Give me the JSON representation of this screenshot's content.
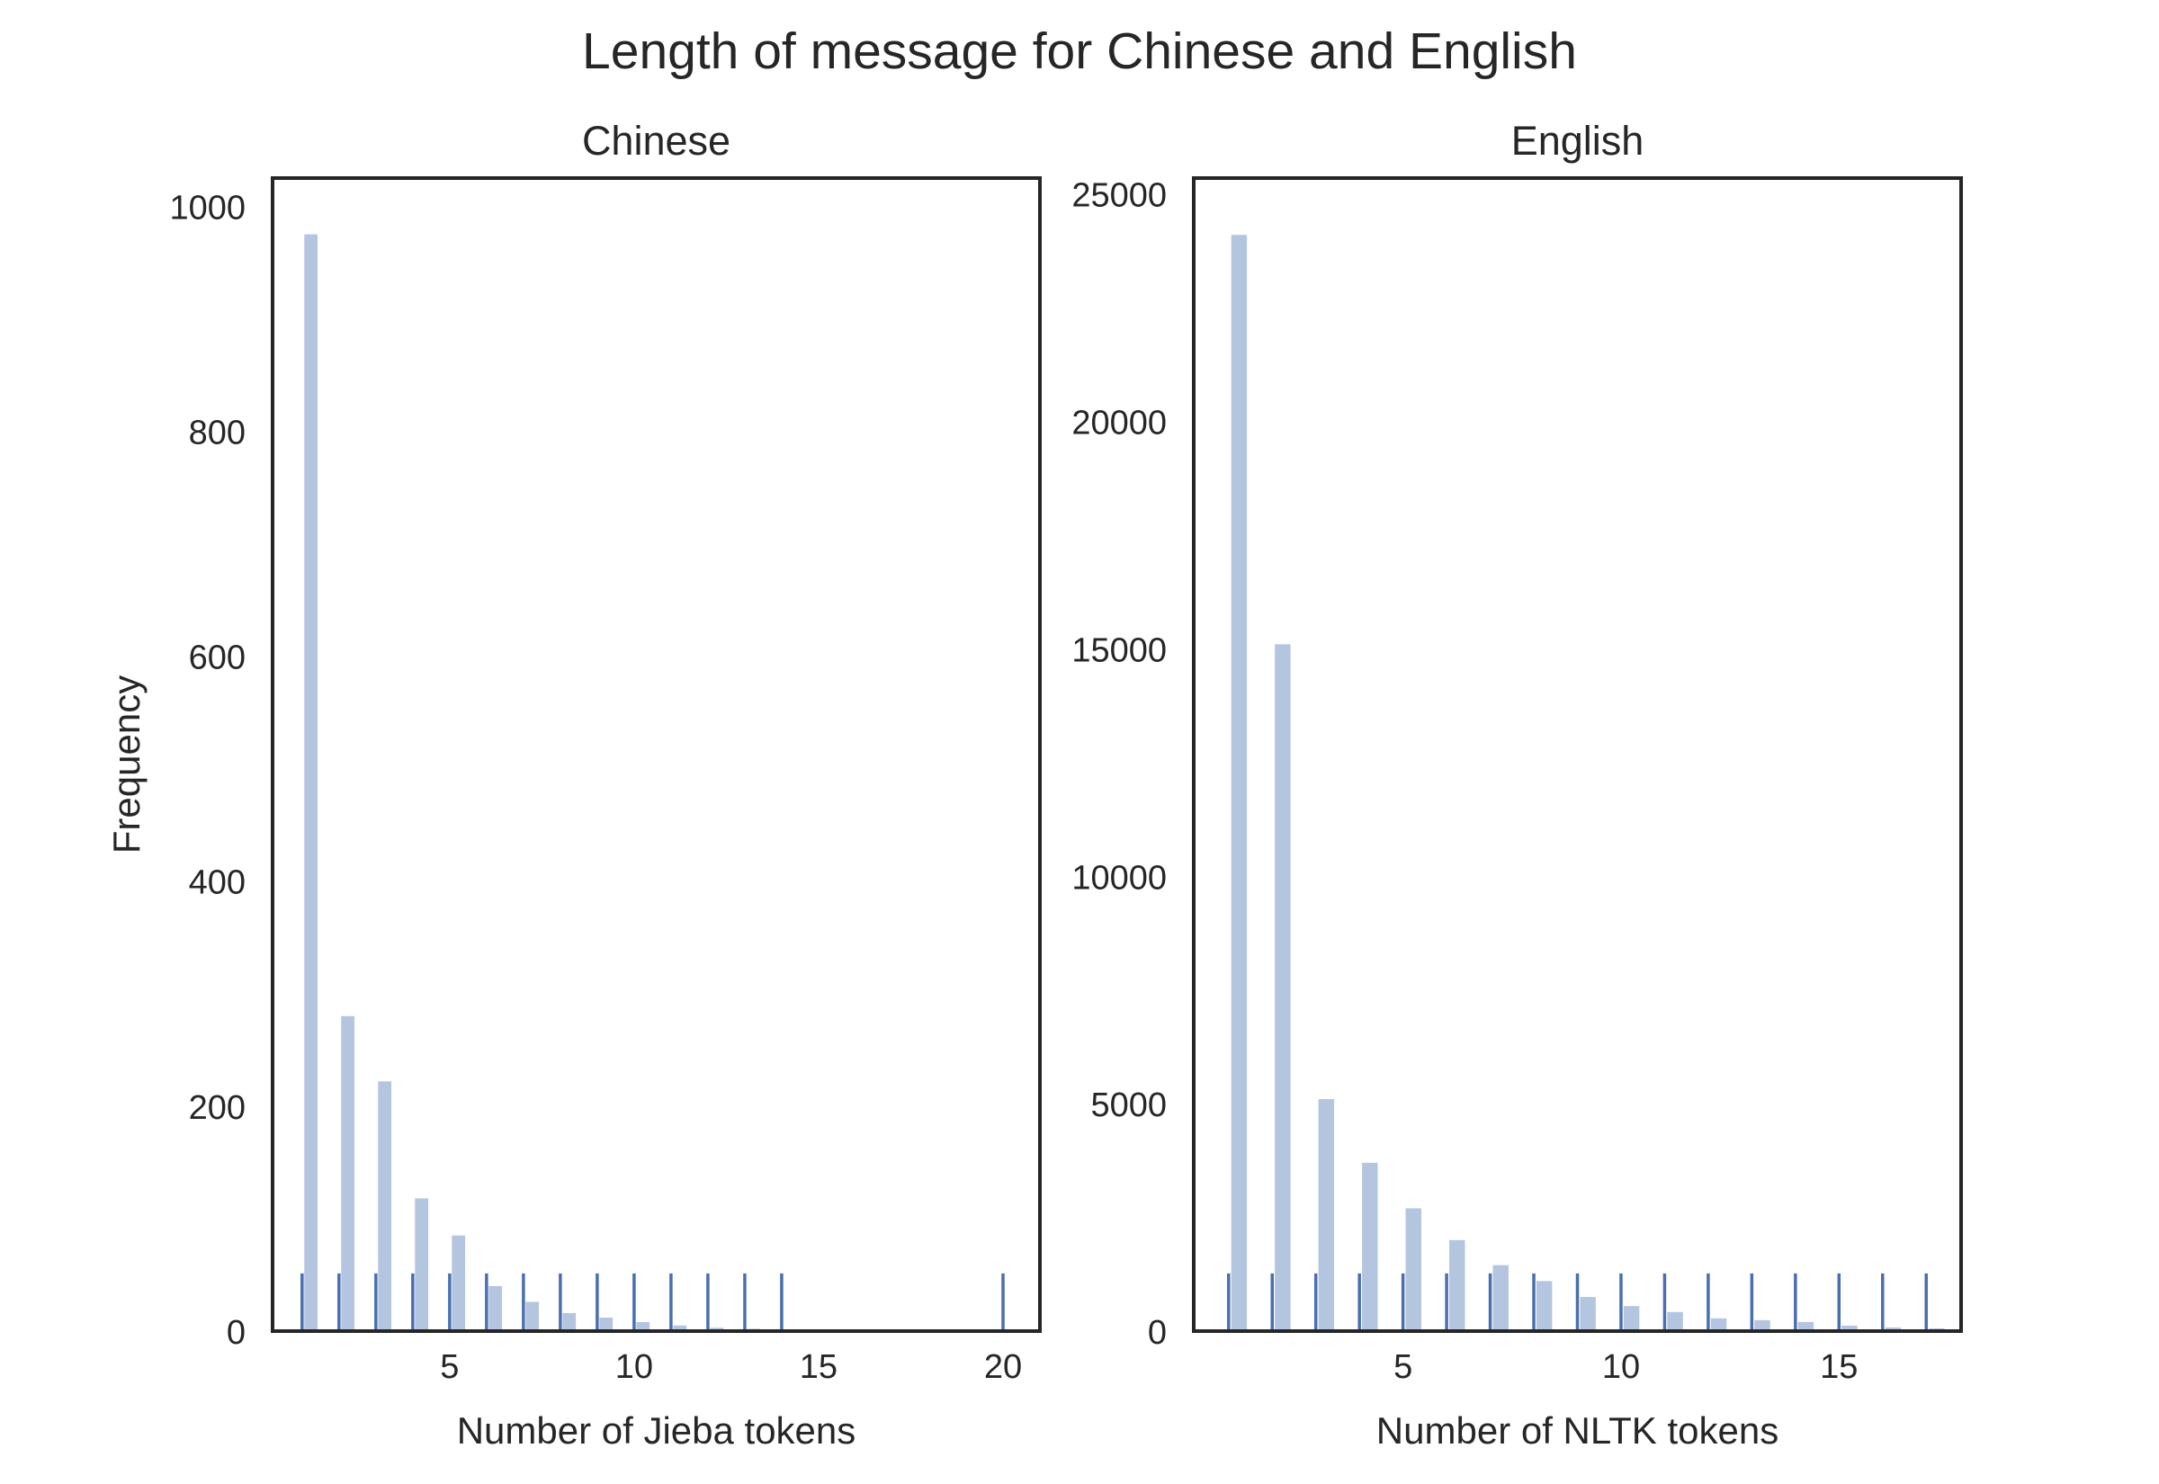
{
  "figure": {
    "suptitle": "Length of message for Chinese and English",
    "shared_ylabel": "Frequency"
  },
  "colors": {
    "bar": "#b4c5df",
    "rug": "#4a6fae",
    "frame": "#262626"
  },
  "chart_data": [
    {
      "type": "bar",
      "title": "Chinese",
      "xlabel": "Number of Jieba tokens",
      "ylabel": "Frequency",
      "xlim": [
        0.2,
        21
      ],
      "ylim": [
        0,
        1025
      ],
      "xticks": [
        5,
        10,
        15,
        20
      ],
      "yticks": [
        0,
        200,
        400,
        600,
        800,
        1000
      ],
      "x": [
        1,
        2,
        3,
        4,
        5,
        6,
        7,
        8,
        9,
        10,
        11,
        12,
        13,
        14,
        20
      ],
      "values": [
        975,
        280,
        222,
        118,
        85,
        40,
        26,
        16,
        12,
        8,
        5,
        3,
        2,
        1,
        1
      ],
      "rug": [
        1,
        2,
        3,
        4,
        5,
        6,
        7,
        8,
        9,
        10,
        11,
        12,
        13,
        14,
        20
      ],
      "grid": false,
      "legend": "none"
    },
    {
      "type": "bar",
      "title": "English",
      "xlabel": "Number of NLTK tokens",
      "ylabel": "",
      "xlim": [
        0.2,
        17.8
      ],
      "ylim": [
        0,
        25350
      ],
      "xticks": [
        5,
        10,
        15
      ],
      "yticks": [
        0,
        5000,
        10000,
        15000,
        20000,
        25000
      ],
      "x": [
        1,
        2,
        3,
        4,
        5,
        6,
        7,
        8,
        9,
        10,
        11,
        12,
        13,
        14,
        15,
        16,
        17
      ],
      "values": [
        24100,
        15100,
        5100,
        3700,
        2700,
        2000,
        1450,
        1100,
        750,
        550,
        420,
        280,
        240,
        200,
        120,
        80,
        60
      ],
      "rug": [
        1,
        2,
        3,
        4,
        5,
        6,
        7,
        8,
        9,
        10,
        11,
        12,
        13,
        14,
        15,
        16,
        17
      ],
      "grid": false,
      "legend": "none"
    }
  ]
}
